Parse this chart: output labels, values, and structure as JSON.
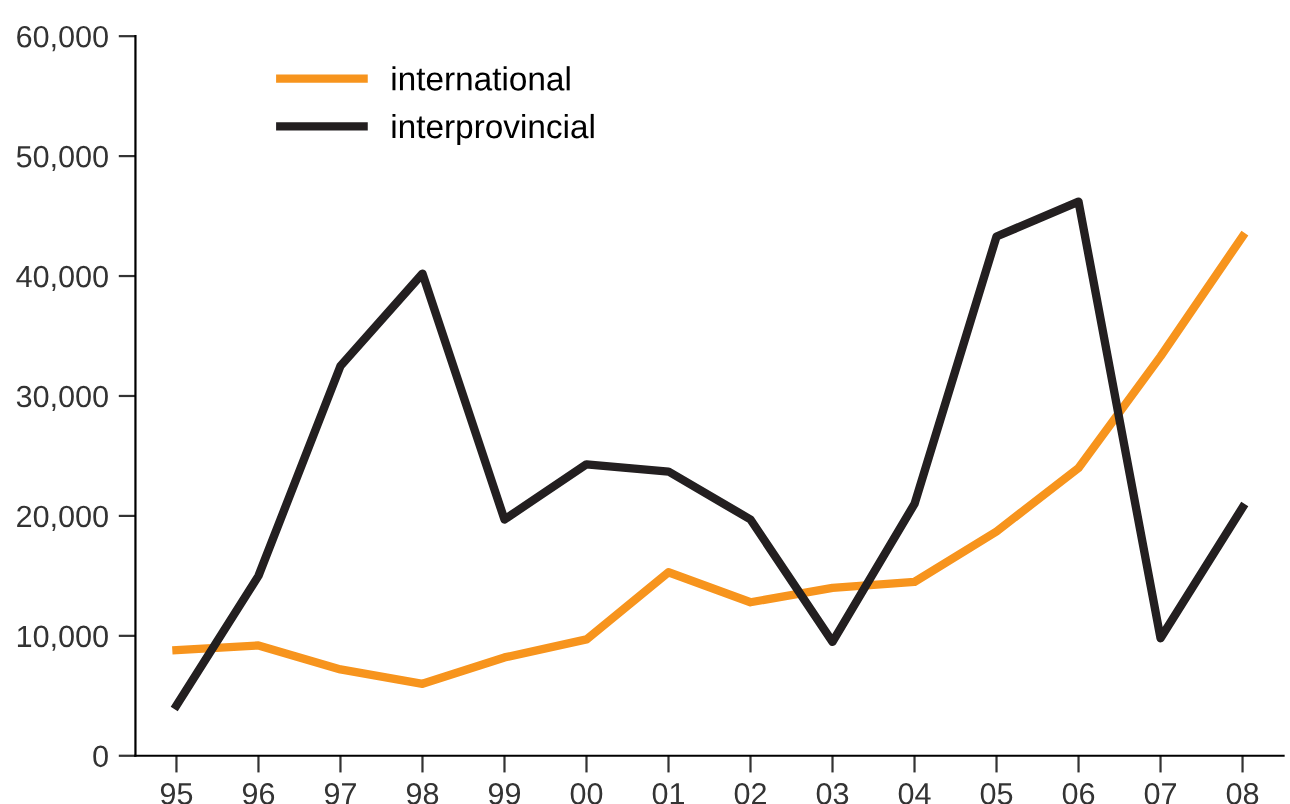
{
  "chart_data": {
    "type": "line",
    "categories": [
      "95",
      "96",
      "97",
      "98",
      "99",
      "00",
      "01",
      "02",
      "03",
      "04",
      "05",
      "06",
      "07",
      "08"
    ],
    "series": [
      {
        "name": "international",
        "color": "#f7941d",
        "values": [
          8800,
          9200,
          7200,
          6000,
          8200,
          9700,
          15300,
          12800,
          14000,
          14500,
          18700,
          24000,
          33300,
          43300
        ]
      },
      {
        "name": "interprovincial",
        "color": "#231f20",
        "values": [
          4200,
          15000,
          32500,
          40200,
          19700,
          24300,
          23700,
          19700,
          9500,
          21000,
          43300,
          46200,
          9800,
          20700
        ]
      }
    ],
    "ylim": [
      0,
      60000
    ],
    "yticks": [
      {
        "value": 0,
        "label": "0"
      },
      {
        "value": 10000,
        "label": "10,000"
      },
      {
        "value": 20000,
        "label": "20,000"
      },
      {
        "value": 30000,
        "label": "30,000"
      },
      {
        "value": 40000,
        "label": "40,000"
      },
      {
        "value": 50000,
        "label": "50,000"
      },
      {
        "value": 60000,
        "label": "60,000"
      }
    ],
    "grid": false,
    "legend": "top left",
    "marker": "none",
    "line_style": "solid"
  }
}
